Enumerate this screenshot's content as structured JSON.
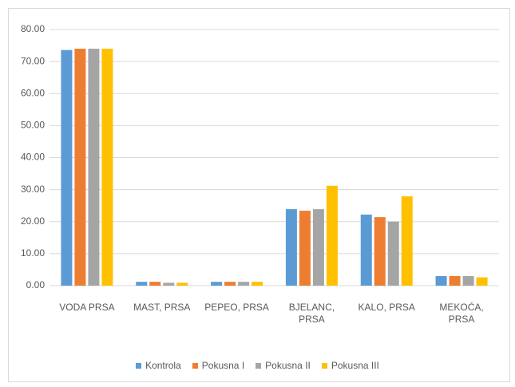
{
  "chart_data": {
    "type": "bar",
    "categories": [
      "VODA PRSA",
      "MAST, PRSA",
      "PEPEO, PRSA",
      "BJELANC, PRSA",
      "KALO, PRSA",
      "MEKOĆA, PRSA"
    ],
    "series": [
      {
        "name": "Kontrola",
        "color": "#5b9bd5",
        "values": [
          73.6,
          1.2,
          1.2,
          23.9,
          22.2,
          3.0
        ]
      },
      {
        "name": "Pokusna I",
        "color": "#ed7d31",
        "values": [
          74.0,
          1.2,
          1.2,
          23.4,
          21.4,
          3.0
        ]
      },
      {
        "name": "Pokusna II",
        "color": "#a5a5a5",
        "values": [
          74.0,
          0.9,
          1.2,
          23.9,
          20.0,
          3.0
        ]
      },
      {
        "name": "Pokusna III",
        "color": "#ffc000",
        "values": [
          74.0,
          0.9,
          1.2,
          31.2,
          27.9,
          2.6
        ]
      }
    ],
    "ylim": [
      0,
      80
    ],
    "yticks": [
      {
        "value": 0,
        "label": "0.00"
      },
      {
        "value": 10,
        "label": "10.00"
      },
      {
        "value": 20,
        "label": "20.00"
      },
      {
        "value": 30,
        "label": "30.00"
      },
      {
        "value": 40,
        "label": "40.00"
      },
      {
        "value": 50,
        "label": "50.00"
      },
      {
        "value": 60,
        "label": "60.00"
      },
      {
        "value": 70,
        "label": "70.00"
      },
      {
        "value": 80,
        "label": "80.00"
      }
    ],
    "grid": true,
    "legend": "bottom"
  }
}
